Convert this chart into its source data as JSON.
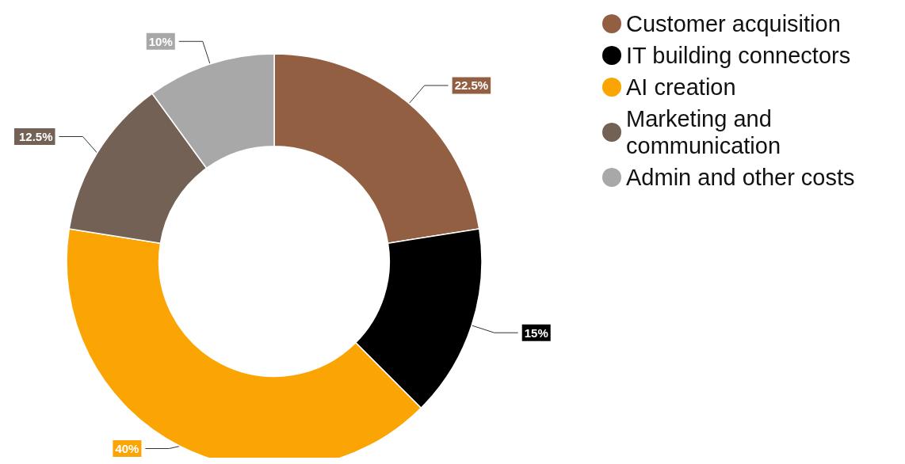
{
  "chart_data": {
    "type": "donut",
    "categories": [
      "Customer acquisition",
      "IT building connectors",
      "AI creation",
      "Marketing and communication",
      "Admin and other costs"
    ],
    "values": [
      22.5,
      15,
      40,
      12.5,
      10
    ],
    "colors": [
      "#935f43",
      "#000000",
      "#fba504",
      "#736155",
      "#a8a8a8"
    ],
    "value_labels": [
      "22.5%",
      "15%",
      "40%",
      "12.5%",
      "10%"
    ],
    "legend": "top right"
  }
}
